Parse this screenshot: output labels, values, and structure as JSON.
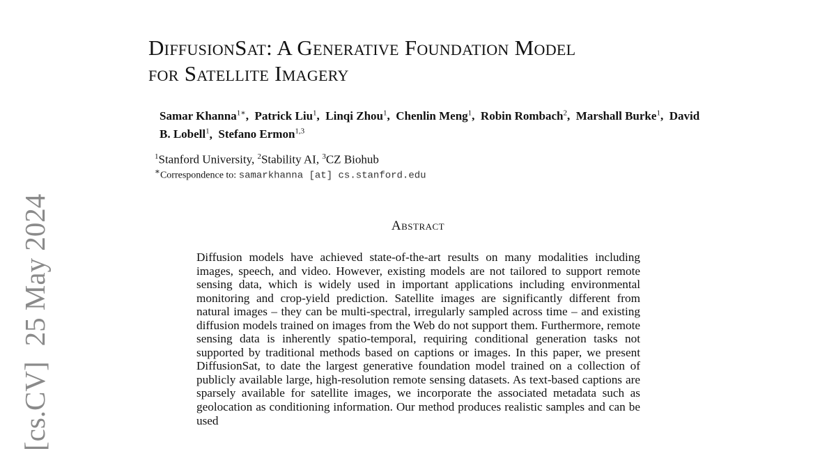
{
  "arxiv_stamp": {
    "category": "[cs.CV]",
    "date": "25 May 2024"
  },
  "title": {
    "line1": "DiffusionSat: A Generative Foundation Model",
    "line2": "for Satellite Imagery"
  },
  "authors": [
    {
      "name": "Samar Khanna",
      "sup": "1∗"
    },
    {
      "name": "Patrick Liu",
      "sup": "1"
    },
    {
      "name": "Linqi Zhou",
      "sup": "1"
    },
    {
      "name": "Chenlin Meng",
      "sup": "1"
    },
    {
      "name": "Robin Rombach",
      "sup": "2"
    },
    {
      "name": "Marshall Burke",
      "sup": "1"
    },
    {
      "name": "David B. Lobell",
      "sup": "1"
    },
    {
      "name": "Stefano Ermon",
      "sup": "1,3"
    }
  ],
  "affiliations": [
    {
      "sup": "1",
      "name": "Stanford University"
    },
    {
      "sup": "2",
      "name": "Stability AI"
    },
    {
      "sup": "3",
      "name": "CZ Biohub"
    }
  ],
  "correspondence": {
    "sup": "∗",
    "label": "Correspondence to:",
    "email": "samarkhanna [at] cs.stanford.edu"
  },
  "abstract": {
    "heading": "Abstract",
    "text": "Diffusion models have achieved state-of-the-art results on many modalities including images, speech, and video. However, existing models are not tailored to support remote sensing data, which is widely used in important applications including environmental monitoring and crop-yield prediction. Satellite images are significantly different from natural images – they can be multi-spectral, irregularly sampled across time – and existing diffusion models trained on images from the Web do not support them. Furthermore, remote sensing data is inherently spatio-temporal, requiring conditional generation tasks not supported by traditional methods based on captions or images. In this paper, we present DiffusionSat, to date the largest generative foundation model trained on a collection of publicly available large, high-resolution remote sensing datasets. As text-based captions are sparsely available for satellite images, we incorporate the associated metadata such as geolocation as conditioning information. Our method produces realistic samples and can be used"
  }
}
